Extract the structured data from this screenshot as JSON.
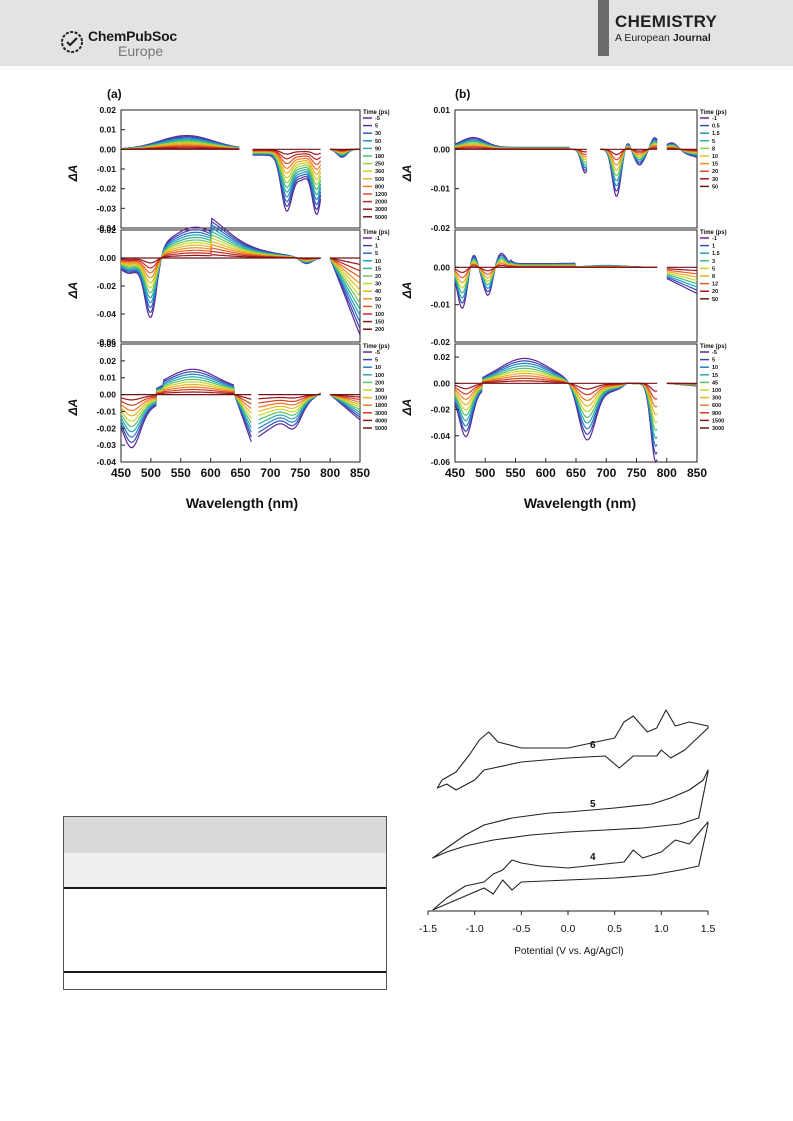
{
  "header": {
    "publisher_line1": "ChemPubSoc",
    "publisher_line2": "Europe",
    "journal_title": "CHEMISTRY",
    "journal_sub_prefix": "A European",
    "journal_sub_bold": "Journal"
  },
  "figure_top": {
    "panel_a_label": "(a)",
    "panel_b_label": "(b)",
    "xlabel": "Wavelength (nm)",
    "ylabel": "ΔA",
    "legend_title": "Time (ps)"
  },
  "figure_cv": {
    "xlabel": "Potential (V vs. Ag/AgCl)",
    "curve_labels": [
      "6",
      "5",
      "4"
    ]
  },
  "colors": {
    "header_band": "#e3e3e3",
    "journal_bar": "#6b6b6b"
  },
  "chart_data": [
    {
      "type": "line",
      "panel": "(a) top",
      "xlabel": "Wavelength (nm)",
      "ylabel": "ΔA",
      "xlim": [
        450,
        850
      ],
      "ylim": [
        -0.04,
        0.02
      ],
      "yticks": [
        -0.04,
        -0.03,
        -0.02,
        -0.01,
        0.0,
        0.01,
        0.02
      ],
      "xticks": [
        450,
        500,
        550,
        600,
        650,
        700,
        750,
        800,
        850
      ],
      "legend_title": "Time (ps)",
      "legend": [
        "-5",
        "5",
        "30",
        "50",
        "90",
        "180",
        "250",
        "360",
        "500",
        "800",
        "1200",
        "2000",
        "3000",
        "5000"
      ]
    },
    {
      "type": "line",
      "panel": "(a) middle",
      "xlabel": "Wavelength (nm)",
      "ylabel": "ΔA",
      "xlim": [
        450,
        850
      ],
      "ylim": [
        -0.06,
        0.02
      ],
      "yticks": [
        -0.06,
        -0.04,
        -0.02,
        0.0,
        0.02
      ],
      "xticks": [
        450,
        500,
        550,
        600,
        650,
        700,
        750,
        800,
        850
      ],
      "legend_title": "Time (ps)",
      "legend": [
        "-1",
        "1",
        "5",
        "10",
        "15",
        "20",
        "30",
        "40",
        "50",
        "70",
        "100",
        "150",
        "200"
      ]
    },
    {
      "type": "line",
      "panel": "(a) bottom",
      "xlabel": "Wavelength (nm)",
      "ylabel": "ΔA",
      "xlim": [
        450,
        850
      ],
      "ylim": [
        -0.04,
        0.03
      ],
      "yticks": [
        -0.04,
        -0.03,
        -0.02,
        -0.01,
        0.0,
        0.01,
        0.02,
        0.03
      ],
      "xticks": [
        450,
        500,
        550,
        600,
        650,
        700,
        750,
        800,
        850
      ],
      "legend_title": "Time (ps)",
      "legend": [
        "-5",
        "5",
        "10",
        "100",
        "200",
        "300",
        "1000",
        "1800",
        "3000",
        "4000",
        "5000"
      ]
    },
    {
      "type": "line",
      "panel": "(b) top",
      "xlabel": "Wavelength (nm)",
      "ylabel": "ΔA",
      "xlim": [
        450,
        850
      ],
      "ylim": [
        -0.02,
        0.01
      ],
      "yticks": [
        -0.02,
        -0.01,
        0.0,
        0.01
      ],
      "xticks": [
        450,
        500,
        550,
        600,
        650,
        700,
        750,
        800,
        850
      ],
      "legend_title": "Time (ps)",
      "legend": [
        "-1",
        "0.5",
        "1.5",
        "5",
        "8",
        "10",
        "15",
        "20",
        "30",
        "50"
      ]
    },
    {
      "type": "line",
      "panel": "(b) middle",
      "xlabel": "Wavelength (nm)",
      "ylabel": "ΔA",
      "xlim": [
        450,
        850
      ],
      "ylim": [
        -0.02,
        0.01
      ],
      "yticks": [
        -0.02,
        -0.01,
        0.0
      ],
      "xticks": [
        450,
        500,
        550,
        600,
        650,
        700,
        750,
        800,
        850
      ],
      "legend_title": "Time (ps)",
      "legend": [
        "-1",
        "1",
        "1.5",
        "3",
        "5",
        "8",
        "12",
        "20",
        "50"
      ]
    },
    {
      "type": "line",
      "panel": "(b) bottom",
      "xlabel": "Wavelength (nm)",
      "ylabel": "ΔA",
      "xlim": [
        450,
        850
      ],
      "ylim": [
        -0.06,
        0.03
      ],
      "yticks": [
        -0.06,
        -0.04,
        -0.02,
        0.0,
        0.02
      ],
      "xticks": [
        450,
        500,
        550,
        600,
        650,
        700,
        750,
        800,
        850
      ],
      "legend_title": "Time (ps)",
      "legend": [
        "-5",
        "5",
        "10",
        "15",
        "45",
        "100",
        "300",
        "600",
        "900",
        "1500",
        "3000"
      ]
    },
    {
      "type": "line",
      "panel": "CV",
      "xlabel": "Potential (V vs. Ag/AgCl)",
      "xlim": [
        -1.5,
        1.5
      ],
      "xticks": [
        -1.5,
        -1.0,
        -0.5,
        0.0,
        0.5,
        1.0,
        1.5
      ],
      "series": [
        {
          "name": "6"
        },
        {
          "name": "5"
        },
        {
          "name": "4"
        }
      ]
    }
  ]
}
